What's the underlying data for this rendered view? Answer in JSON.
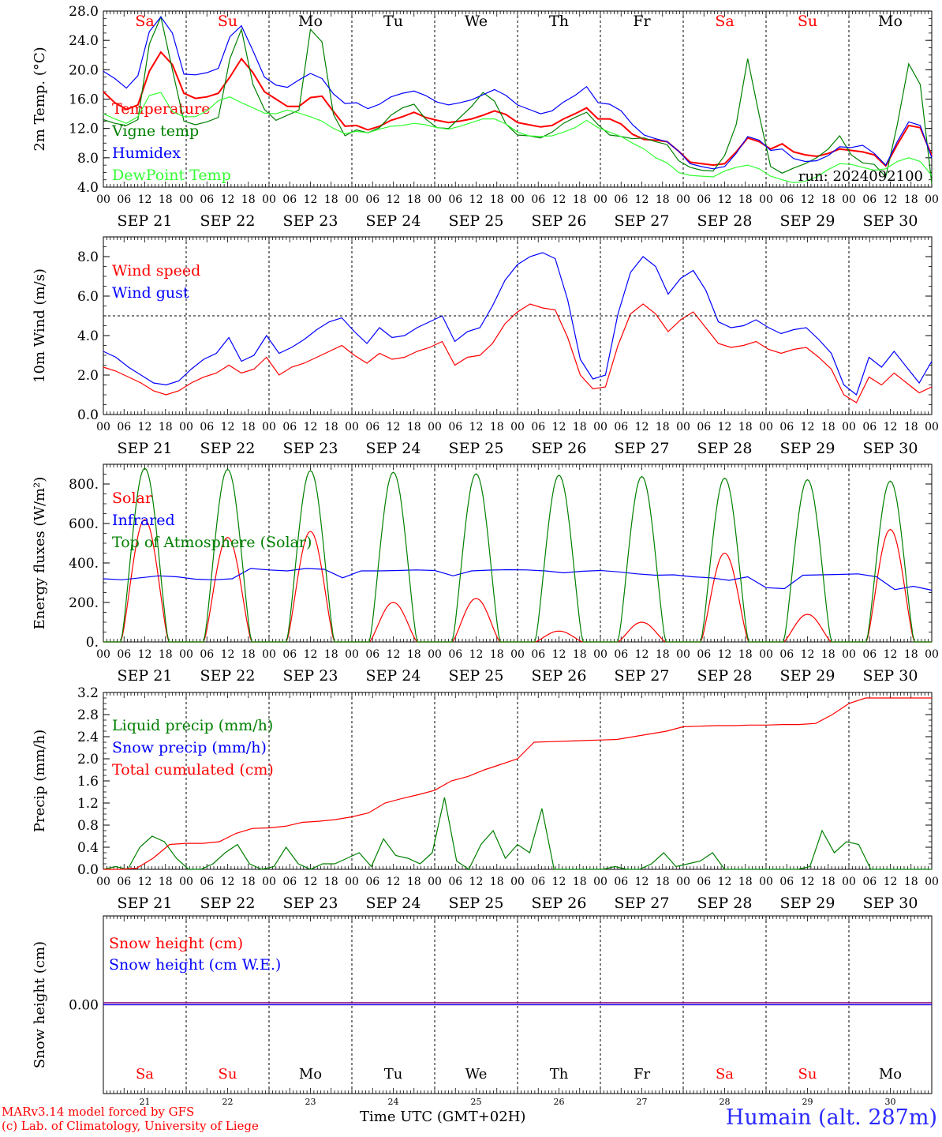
{
  "chart_data": [
    {
      "type": "line",
      "ylabel": "2m Temp. (°C)",
      "ylim": [
        4.0,
        28.0
      ],
      "yticks": [
        "4.0",
        "8.0",
        "12.0",
        "16.0",
        "20.0",
        "24.0",
        "28.0"
      ],
      "run_label": "run: 2024092100",
      "series": [
        {
          "name": "Temperature",
          "color": "#ff0000",
          "values": [
            17.0,
            15.5,
            14.6,
            15.2,
            19.8,
            22.4,
            20.7,
            16.8,
            16.1,
            16.3,
            16.8,
            19.0,
            21.5,
            19.6,
            17.0,
            16.0,
            15.0,
            15.0,
            16.2,
            16.4,
            14.3,
            12.3,
            12.4,
            11.8,
            12.3,
            13.1,
            13.6,
            14.2,
            13.5,
            13.1,
            12.8,
            13.0,
            13.3,
            13.8,
            14.4,
            13.9,
            12.8,
            12.5,
            12.2,
            12.4,
            13.3,
            14.0,
            14.8,
            13.3,
            13.3,
            12.6,
            11.2,
            10.5,
            10.4,
            10.2,
            8.9,
            7.4,
            7.2,
            7.0,
            7.2,
            8.8,
            10.7,
            10.2,
            9.2,
            9.9,
            8.8,
            8.4,
            8.2,
            8.6,
            9.2,
            9.0,
            8.8,
            8.4,
            6.9,
            9.8,
            12.4,
            12.1,
            8.3
          ]
        },
        {
          "name": "Vigne temp",
          "color": "#008000",
          "values": [
            13.2,
            12.7,
            12.4,
            13.2,
            23.5,
            27.2,
            20.0,
            13.0,
            12.5,
            12.9,
            13.5,
            21.5,
            25.5,
            18.0,
            14.6,
            13.1,
            13.8,
            14.5,
            25.5,
            23.8,
            13.9,
            11.0,
            11.8,
            11.4,
            12.1,
            13.8,
            14.8,
            15.3,
            13.3,
            12.1,
            12.0,
            13.5,
            15.0,
            16.9,
            15.7,
            12.6,
            11.1,
            11.0,
            10.7,
            11.5,
            12.7,
            13.5,
            14.2,
            12.5,
            11.1,
            10.9,
            10.6,
            10.7,
            10.2,
            9.8,
            7.6,
            6.7,
            6.3,
            6.2,
            8.3,
            12.5,
            21.5,
            13.8,
            6.8,
            5.9,
            6.6,
            7.2,
            8.0,
            9.2,
            11.0,
            8.4,
            7.3,
            7.1,
            5.4,
            12.5,
            20.8,
            18.0,
            4.5
          ]
        },
        {
          "name": "Humidex",
          "color": "#0000ff",
          "values": [
            19.8,
            18.8,
            17.5,
            19.2,
            25.2,
            27.2,
            25.0,
            19.4,
            19.3,
            19.6,
            20.2,
            24.5,
            26.0,
            22.6,
            19.0,
            17.9,
            17.6,
            18.6,
            19.5,
            18.8,
            16.7,
            15.4,
            15.5,
            14.7,
            15.3,
            16.3,
            16.8,
            17.1,
            16.5,
            15.6,
            15.2,
            15.5,
            15.9,
            16.6,
            17.3,
            16.5,
            15.2,
            14.6,
            14.0,
            14.4,
            15.6,
            16.5,
            17.7,
            15.5,
            15.3,
            14.4,
            12.5,
            11.1,
            10.6,
            10.2,
            8.9,
            7.2,
            6.8,
            6.5,
            6.8,
            8.6,
            10.9,
            10.4,
            9.0,
            9.2,
            7.9,
            7.5,
            7.6,
            8.3,
            9.5,
            9.4,
            9.7,
            8.6,
            7.0,
            10.2,
            12.9,
            12.4,
            8.0
          ]
        },
        {
          "name": "DewPoint Temp",
          "color": "#33ff33",
          "values": [
            14.0,
            13.3,
            12.7,
            13.6,
            16.5,
            16.9,
            14.3,
            13.6,
            13.6,
            14.4,
            15.8,
            16.3,
            15.5,
            14.8,
            14.1,
            14.0,
            14.5,
            14.1,
            13.6,
            13.0,
            12.0,
            11.3,
            11.6,
            11.4,
            11.9,
            12.3,
            12.4,
            12.7,
            12.5,
            12.1,
            11.9,
            12.3,
            12.8,
            13.3,
            13.3,
            12.6,
            11.5,
            11.0,
            10.9,
            11.0,
            11.5,
            12.1,
            13.1,
            12.1,
            11.5,
            10.9,
            10.0,
            9.2,
            8.0,
            7.3,
            6.0,
            5.6,
            5.5,
            5.4,
            6.2,
            6.7,
            7.0,
            6.5,
            5.5,
            5.0,
            4.6,
            4.8,
            5.4,
            6.4,
            7.2,
            7.1,
            6.7,
            6.3,
            6.5,
            7.5,
            8.0,
            7.5,
            5.6
          ]
        }
      ]
    },
    {
      "type": "line",
      "ylabel": "10m Wind (m/s)",
      "ylim": [
        0.0,
        9.0
      ],
      "yticks": [
        "0.0",
        "2.0",
        "4.0",
        "6.0",
        "8.0"
      ],
      "reference_line": 5.0,
      "series": [
        {
          "name": "Wind speed",
          "color": "#ff0000",
          "values": [
            2.4,
            2.2,
            1.9,
            1.6,
            1.2,
            1.0,
            1.2,
            1.6,
            1.9,
            2.1,
            2.5,
            2.1,
            2.3,
            2.9,
            2.0,
            2.4,
            2.6,
            2.9,
            3.2,
            3.5,
            3.0,
            2.6,
            3.1,
            2.8,
            2.9,
            3.2,
            3.4,
            3.7,
            2.5,
            2.9,
            3.0,
            3.6,
            4.6,
            5.2,
            5.6,
            5.4,
            5.3,
            3.9,
            2.0,
            1.3,
            1.4,
            3.5,
            5.1,
            5.6,
            5.1,
            4.2,
            4.8,
            5.2,
            4.4,
            3.6,
            3.4,
            3.5,
            3.7,
            3.3,
            3.1,
            3.3,
            3.4,
            2.9,
            2.3,
            1.0,
            0.6,
            1.9,
            1.5,
            2.1,
            1.6,
            1.1,
            1.4
          ]
        },
        {
          "name": "Wind gust",
          "color": "#0000ff",
          "values": [
            3.2,
            2.9,
            2.4,
            2.0,
            1.6,
            1.5,
            1.7,
            2.3,
            2.8,
            3.1,
            3.9,
            2.7,
            3.0,
            4.0,
            3.1,
            3.4,
            3.8,
            4.3,
            4.7,
            4.9,
            4.2,
            3.6,
            4.4,
            3.9,
            4.0,
            4.4,
            4.7,
            5.0,
            3.7,
            4.2,
            4.4,
            5.5,
            6.8,
            7.6,
            8.0,
            8.2,
            7.9,
            5.8,
            2.8,
            1.8,
            2.0,
            5.1,
            7.2,
            8.0,
            7.5,
            6.1,
            6.9,
            7.3,
            6.3,
            4.7,
            4.4,
            4.5,
            4.8,
            4.4,
            4.1,
            4.3,
            4.4,
            3.8,
            3.1,
            1.5,
            1.0,
            2.9,
            2.4,
            3.2,
            2.4,
            1.6,
            2.7
          ]
        }
      ]
    },
    {
      "type": "line",
      "ylabel": "Energy fluxes (W/m²)",
      "ylim": [
        0,
        900
      ],
      "yticks": [
        "0.",
        "200.",
        "400.",
        "600.",
        "800."
      ],
      "series": [
        {
          "name": "Solar",
          "color": "#ff0000",
          "peaks": [
            620,
            530,
            560,
            200,
            220,
            55,
            100,
            450,
            140,
            570
          ]
        },
        {
          "name": "Infrared",
          "color": "#0000ff",
          "values": [
            320,
            315,
            325,
            335,
            330,
            318,
            315,
            320,
            372,
            365,
            360,
            372,
            368,
            325,
            360,
            360,
            362,
            365,
            362,
            335,
            360,
            364,
            366,
            365,
            360,
            350,
            358,
            362,
            355,
            345,
            338,
            340,
            330,
            325,
            312,
            330,
            275,
            270,
            338,
            340,
            342,
            345,
            330,
            265,
            282,
            262
          ]
        },
        {
          "name": "Top of Atmosphere (Solar)",
          "color": "#008000",
          "peaks": [
            880,
            875,
            868,
            860,
            852,
            845,
            838,
            830,
            822,
            815
          ]
        }
      ]
    },
    {
      "type": "line",
      "ylabel": "Precip (mm/h)",
      "ylim": [
        0.0,
        3.2
      ],
      "yticks": [
        "0.0",
        "0.4",
        "0.8",
        "1.2",
        "1.6",
        "2.0",
        "2.4",
        "2.8",
        "3.2"
      ],
      "series": [
        {
          "name": "Liquid precip (mm/h)",
          "color": "#008000",
          "values": [
            0,
            0.05,
            0,
            0.4,
            0.6,
            0.5,
            0.2,
            0,
            0,
            0.1,
            0.3,
            0.45,
            0.1,
            0,
            0.05,
            0.4,
            0.1,
            0,
            0.1,
            0.1,
            0.2,
            0.3,
            0.05,
            0.55,
            0.25,
            0.2,
            0.1,
            0.3,
            1.3,
            0.15,
            0,
            0.45,
            0.7,
            0.2,
            0.45,
            0.3,
            1.1,
            0,
            0,
            0,
            0,
            0,
            0.05,
            0,
            0,
            0.1,
            0.3,
            0.05,
            0.1,
            0.15,
            0.3,
            0,
            0,
            0,
            0,
            0,
            0,
            0,
            0.05,
            0.7,
            0.3,
            0.5,
            0.45,
            0,
            0,
            0,
            0,
            0,
            0
          ]
        },
        {
          "name": "Snow precip (mm/h)",
          "color": "#0000ff",
          "values": []
        },
        {
          "name": "Total cumulated (cm)",
          "color": "#ff0000",
          "values": [
            0,
            0,
            0.02,
            0.2,
            0.45,
            0.47,
            0.47,
            0.5,
            0.65,
            0.74,
            0.75,
            0.78,
            0.85,
            0.87,
            0.9,
            0.95,
            1.02,
            1.2,
            1.28,
            1.35,
            1.43,
            1.6,
            1.68,
            1.8,
            1.9,
            2.0,
            2.3,
            2.31,
            2.32,
            2.33,
            2.34,
            2.35,
            2.4,
            2.45,
            2.5,
            2.58,
            2.59,
            2.6,
            2.6,
            2.61,
            2.61,
            2.62,
            2.62,
            2.64,
            2.8,
            3.0,
            3.1,
            3.1,
            3.1,
            3.1,
            3.1
          ]
        }
      ]
    },
    {
      "type": "line",
      "ylabel": "Snow height (cm)",
      "yticks": [
        "0.00"
      ],
      "series": [
        {
          "name": "Snow height (cm)",
          "color": "#ff0000",
          "values": [
            0.0,
            0.0
          ]
        },
        {
          "name": "Snow height (cm W.E.)",
          "color": "#0000ff",
          "values": [
            0.0,
            0.0
          ]
        }
      ]
    }
  ],
  "x_axis": {
    "hour_labels": [
      "00",
      "06",
      "12",
      "18"
    ],
    "last_hour_label": "00",
    "dates": [
      "SEP 21",
      "SEP 22",
      "SEP 23",
      "SEP 24",
      "SEP 25",
      "SEP 26",
      "SEP 27",
      "SEP 28",
      "SEP 29",
      "SEP 30"
    ],
    "day_names": [
      "Sa",
      "Su",
      "Mo",
      "Tu",
      "We",
      "Th",
      "Fr",
      "Sa",
      "Su",
      "Mo"
    ],
    "day_numbers": [
      "21",
      "22",
      "23",
      "24",
      "25",
      "26",
      "27",
      "28",
      "29",
      "30"
    ],
    "weekend_color": "#ff0000",
    "weekday_color": "#000000"
  },
  "footer": {
    "credit_line1": "MARv3.14 model forced by GFS",
    "credit_line2": "(c) Lab. of Climatology, University of Liege",
    "xlabel": "Time UTC (GMT+02H)",
    "location": "Humain (alt. 287m)"
  }
}
